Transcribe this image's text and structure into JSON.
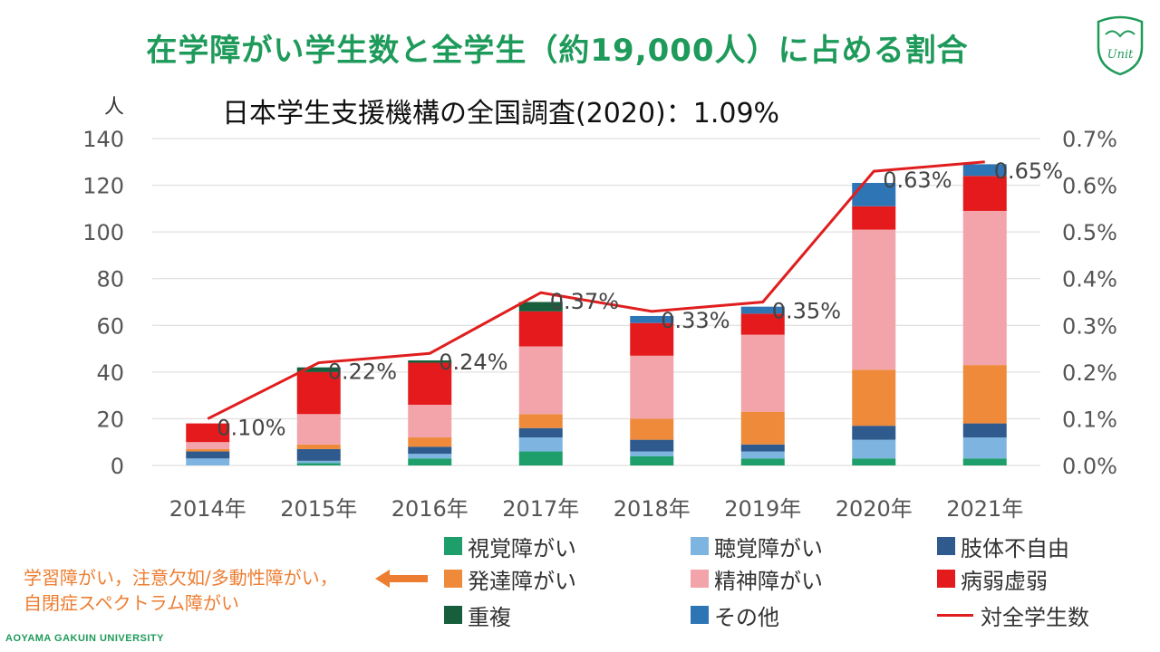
{
  "slide": {
    "title": "在学障がい学生数と全学生（約19,000人）に占める割合",
    "subtitle": "日本学生支援機構の全国調査(2020)：1.09%",
    "unit_label": "人",
    "footer": "AOYAMA GAKUIN UNIVERSITY",
    "logo_text": "Unit",
    "note_lines": [
      "学習障がい，注意欠如/多動性障がい，",
      "自閉症スペクトラム障がい"
    ]
  },
  "colors": {
    "title": "#1e9a5a",
    "note": "#ed7d31",
    "grid": "#d9d9d9",
    "line": "#e01e1e"
  },
  "chart_data": {
    "type": "bar",
    "stacked": true,
    "categories": [
      "2014年",
      "2015年",
      "2016年",
      "2017年",
      "2018年",
      "2019年",
      "2020年",
      "2021年"
    ],
    "ylim": [
      0,
      140
    ],
    "yticks": [
      "0",
      "20",
      "40",
      "60",
      "80",
      "100",
      "120",
      "140"
    ],
    "y2lim": [
      0,
      0.7
    ],
    "y2ticks": [
      "0.0%",
      "0.1%",
      "0.2%",
      "0.3%",
      "0.4%",
      "0.5%",
      "0.6%",
      "0.7%"
    ],
    "grid": true,
    "legend_position": "bottom",
    "series": [
      {
        "name": "視覚障がい",
        "color": "#1e9e6a",
        "values": [
          0,
          1,
          3,
          6,
          4,
          3,
          3,
          3
        ]
      },
      {
        "name": "聴覚障がい",
        "color": "#7db4e0",
        "values": [
          3,
          1,
          2,
          6,
          2,
          3,
          8,
          9
        ]
      },
      {
        "name": "肢体不自由",
        "color": "#2f5a8e",
        "values": [
          3,
          5,
          3,
          4,
          5,
          3,
          6,
          6
        ]
      },
      {
        "name": "発達障がい",
        "color": "#ee8a3a",
        "values": [
          1,
          2,
          4,
          6,
          9,
          14,
          24,
          25
        ]
      },
      {
        "name": "精神障がい",
        "color": "#f2a4aa",
        "values": [
          3,
          13,
          14,
          29,
          27,
          33,
          60,
          66
        ]
      },
      {
        "name": "病弱虚弱",
        "color": "#e41a1c",
        "values": [
          8,
          18,
          18,
          15,
          14,
          9,
          10,
          15
        ]
      },
      {
        "name": "重複",
        "color": "#165e3c",
        "values": [
          0,
          2,
          1,
          4,
          0,
          0,
          0,
          0
        ]
      },
      {
        "name": "その他",
        "color": "#2e75b6",
        "values": [
          0,
          0,
          0,
          0,
          3,
          3,
          10,
          5
        ]
      }
    ],
    "line_series": {
      "name": "対全学生数",
      "color": "#e01e1e",
      "axis": "right",
      "values": [
        0.1,
        0.22,
        0.24,
        0.37,
        0.33,
        0.35,
        0.63,
        0.65
      ],
      "labels": [
        "0.10%",
        "0.22%",
        "0.24%",
        "0.37%",
        "0.33%",
        "0.35%",
        "0.63%",
        "0.65%"
      ]
    }
  }
}
